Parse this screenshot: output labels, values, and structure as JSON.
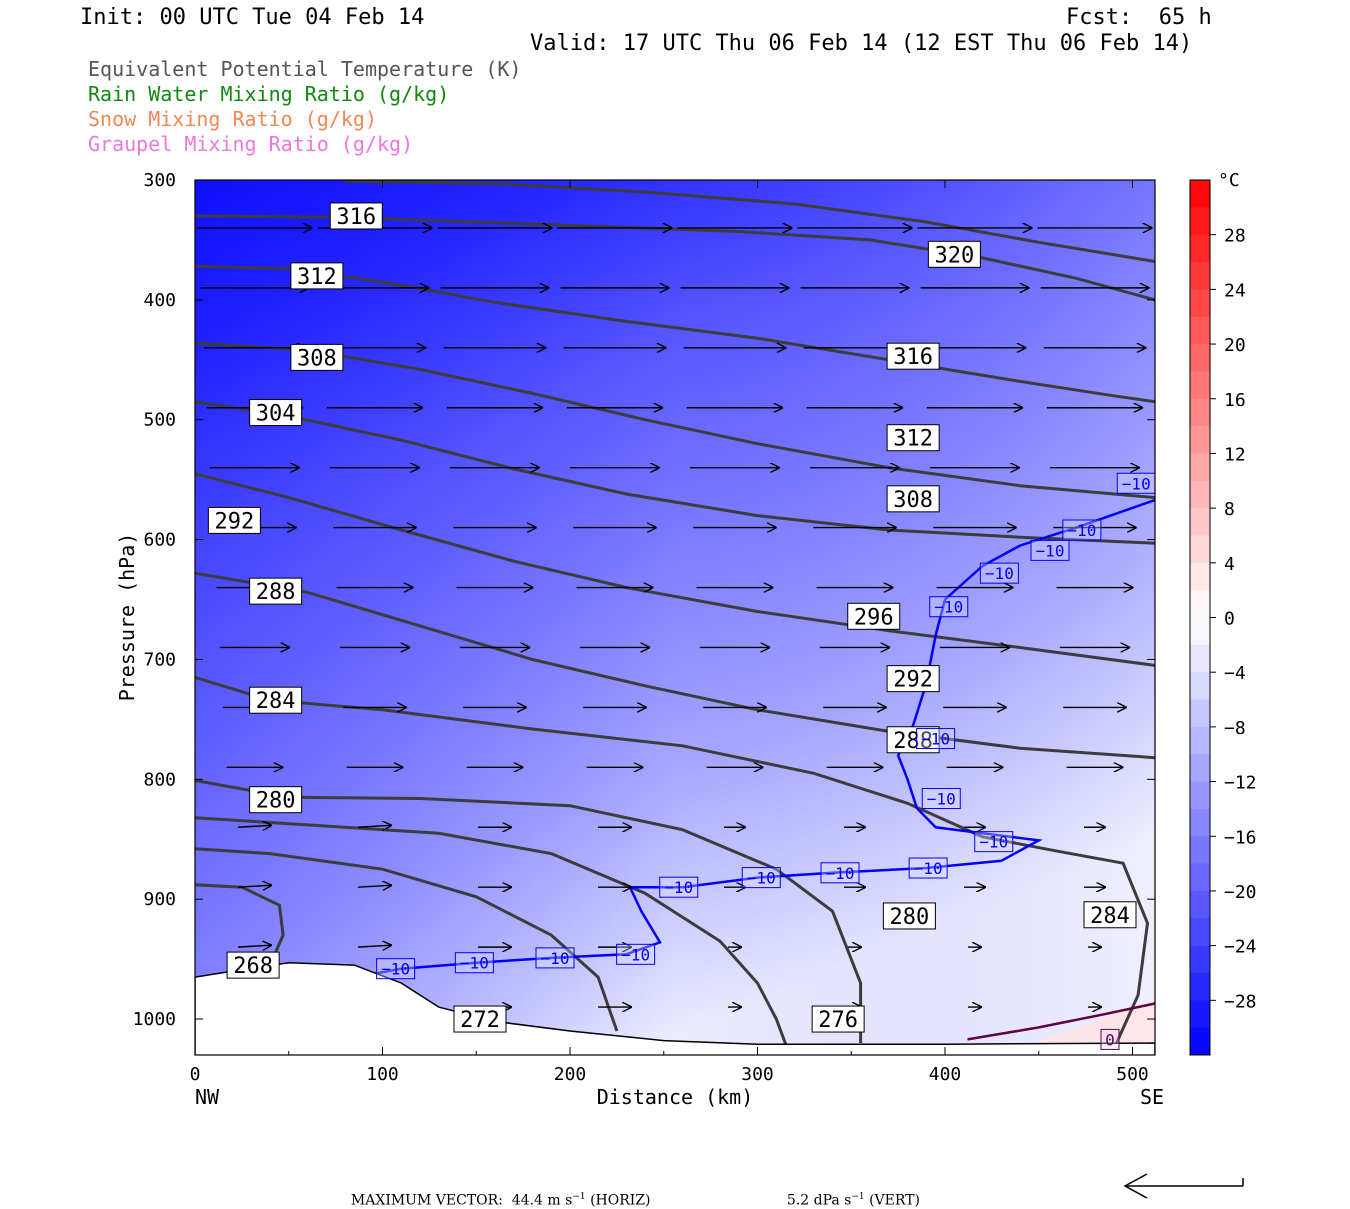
{
  "header": {
    "init": "Init: 00 UTC Tue 04 Feb 14",
    "fcst": "Fcst:  65 h",
    "valid": "Valid: 17 UTC Thu 06 Feb 14 (12 EST Thu 06 Feb 14)"
  },
  "fields": [
    {
      "label": "Equivalent Potential Temperature (K)",
      "color": "#555555"
    },
    {
      "label": "Rain Water Mixing Ratio (g/kg)",
      "color": "#118811"
    },
    {
      "label": "Snow Mixing Ratio (g/kg)",
      "color": "#ee8855"
    },
    {
      "label": "Graupel Mixing Ratio (g/kg)",
      "color": "#ee77dd"
    }
  ],
  "chart_data": {
    "type": "heatmap",
    "xlabel": "Distance (km)",
    "ylabel": "Pressure (hPa)",
    "xlim": [
      0,
      512
    ],
    "ylim": [
      1030,
      300
    ],
    "x_ticks": [
      "0",
      "100",
      "200",
      "300",
      "400",
      "500"
    ],
    "x_tick_values": [
      0,
      100,
      200,
      300,
      400,
      500
    ],
    "y_ticks": [
      "300",
      "400",
      "500",
      "600",
      "700",
      "800",
      "900",
      "1000"
    ],
    "y_tick_values": [
      300,
      400,
      500,
      600,
      700,
      800,
      900,
      1000
    ],
    "left_end_label": "NW",
    "right_end_label": "SE",
    "colorbar": {
      "unit": "°C",
      "labels": [
        "28",
        "24",
        "20",
        "16",
        "12",
        "8",
        "4",
        "0",
        "−4",
        "−8",
        "−12",
        "−16",
        "−20",
        "−24",
        "−28"
      ],
      "label_values": [
        28,
        24,
        20,
        16,
        12,
        8,
        4,
        0,
        -4,
        -8,
        -12,
        -16,
        -20,
        -24,
        -28
      ],
      "min": -32,
      "max": 32,
      "step": 2,
      "cold_color": "#0000ff",
      "neutral_color": "#ffffff",
      "warm_color": "#ff0000"
    },
    "theta_e_contours": [
      {
        "label": "316",
        "label_at": [
          86,
          330
        ],
        "points": [
          [
            0,
            330
          ],
          [
            80,
            331
          ],
          [
            150,
            335
          ],
          [
            220,
            339
          ],
          [
            290,
            343
          ],
          [
            360,
            350
          ],
          [
            420,
            365
          ],
          [
            470,
            382
          ],
          [
            512,
            400
          ]
        ]
      },
      {
        "label": "312",
        "label_at": [
          65,
          380
        ],
        "points": [
          [
            0,
            372
          ],
          [
            50,
            374
          ],
          [
            100,
            385
          ],
          [
            160,
            402
          ],
          [
            230,
            418
          ],
          [
            300,
            432
          ],
          [
            370,
            450
          ],
          [
            440,
            468
          ],
          [
            490,
            480
          ],
          [
            512,
            485
          ]
        ]
      },
      {
        "label": "320",
        "label_at": [
          405,
          362
        ],
        "points": [
          [
            80,
            301
          ],
          [
            160,
            303
          ],
          [
            240,
            310
          ],
          [
            320,
            320
          ],
          [
            390,
            335
          ],
          [
            450,
            352
          ],
          [
            512,
            368
          ]
        ]
      },
      {
        "label": "308",
        "label_at": [
          65,
          448
        ],
        "points": [
          [
            0,
            436
          ],
          [
            60,
            442
          ],
          [
            120,
            458
          ],
          [
            180,
            478
          ],
          [
            240,
            500
          ],
          [
            300,
            520
          ],
          [
            370,
            540
          ],
          [
            440,
            555
          ],
          [
            512,
            565
          ]
        ]
      },
      {
        "label": "316",
        "label_at": [
          383,
          447
        ],
        "points": null
      },
      {
        "label": "304",
        "label_at": [
          43,
          494
        ],
        "points": [
          [
            0,
            485
          ],
          [
            50,
            497
          ],
          [
            110,
            517
          ],
          [
            170,
            541
          ],
          [
            230,
            562
          ],
          [
            300,
            580
          ],
          [
            370,
            592
          ],
          [
            440,
            598
          ],
          [
            512,
            603
          ]
        ]
      },
      {
        "label": "312",
        "label_at": [
          383,
          515
        ],
        "points": null
      },
      {
        "label": "308",
        "label_at": [
          383,
          566
        ],
        "points": null
      },
      {
        "label": "292",
        "label_at": [
          21,
          584
        ],
        "points": [
          [
            0,
            545
          ],
          [
            50,
            565
          ],
          [
            110,
            592
          ],
          [
            170,
            618
          ],
          [
            230,
            640
          ],
          [
            300,
            660
          ],
          [
            370,
            676
          ],
          [
            440,
            690
          ],
          [
            512,
            705
          ]
        ]
      },
      {
        "label": "288",
        "label_at": [
          43,
          643
        ],
        "points": [
          [
            0,
            628
          ],
          [
            60,
            644
          ],
          [
            120,
            672
          ],
          [
            180,
            700
          ],
          [
            240,
            722
          ],
          [
            300,
            742
          ],
          [
            370,
            760
          ],
          [
            440,
            774
          ],
          [
            512,
            782
          ]
        ]
      },
      {
        "label": "296",
        "label_at": [
          362,
          664
        ],
        "points": null
      },
      {
        "label": "292",
        "label_at": [
          383,
          716
        ],
        "points": null
      },
      {
        "label": "284",
        "label_at": [
          43,
          734
        ],
        "points": [
          [
            0,
            715
          ],
          [
            40,
            734
          ],
          [
            100,
            742
          ],
          [
            180,
            758
          ],
          [
            260,
            772
          ],
          [
            330,
            795
          ],
          [
            380,
            820
          ],
          [
            420,
            848
          ],
          [
            460,
            860
          ],
          [
            495,
            870
          ],
          [
            508,
            920
          ],
          [
            503,
            980
          ],
          [
            490,
            1025
          ]
        ]
      },
      {
        "label": "288",
        "label_at": [
          383,
          767
        ],
        "points": null
      },
      {
        "label": "280",
        "label_at": [
          43,
          817
        ],
        "points": [
          [
            0,
            801
          ],
          [
            50,
            815
          ],
          [
            120,
            816
          ],
          [
            200,
            822
          ],
          [
            260,
            842
          ],
          [
            310,
            875
          ],
          [
            340,
            910
          ],
          [
            355,
            970
          ],
          [
            355,
            1020
          ]
        ]
      },
      {
        "label": "284",
        "label_at": [
          488,
          913
        ],
        "points": null
      },
      {
        "label": "280",
        "label_at": [
          381,
          914
        ],
        "points": null
      },
      {
        "label": "276",
        "label_at": [
          343,
          1000
        ],
        "points": [
          [
            0,
            832
          ],
          [
            60,
            838
          ],
          [
            130,
            845
          ],
          [
            190,
            862
          ],
          [
            240,
            895
          ],
          [
            280,
            935
          ],
          [
            300,
            970
          ],
          [
            310,
            1000
          ],
          [
            316,
            1025
          ]
        ]
      },
      {
        "label": "272",
        "label_at": [
          152,
          1000
        ],
        "points": [
          [
            0,
            858
          ],
          [
            40,
            862
          ],
          [
            100,
            875
          ],
          [
            150,
            898
          ],
          [
            190,
            930
          ],
          [
            215,
            965
          ],
          [
            225,
            1010
          ]
        ]
      },
      {
        "label": "268",
        "label_at": [
          31,
          955
        ],
        "points": [
          [
            0,
            888
          ],
          [
            25,
            890
          ],
          [
            45,
            905
          ],
          [
            47,
            930
          ],
          [
            40,
            955
          ]
        ]
      }
    ],
    "temperature_contours": [
      {
        "value": -10,
        "color": "#0000ff",
        "label_positions": [
          [
            107,
            958
          ],
          [
            149,
            953
          ],
          [
            192,
            949
          ],
          [
            235,
            946
          ],
          [
            258,
            890
          ],
          [
            302,
            882
          ],
          [
            344,
            878
          ],
          [
            391,
            874
          ],
          [
            426,
            852
          ],
          [
            398,
            816
          ],
          [
            395,
            766
          ],
          [
            402,
            656
          ],
          [
            429,
            628
          ],
          [
            456,
            609
          ],
          [
            473,
            592
          ],
          [
            502,
            553
          ]
        ],
        "points": [
          [
            86,
            965
          ],
          [
            110,
            958
          ],
          [
            150,
            953
          ],
          [
            190,
            949
          ],
          [
            230,
            946
          ],
          [
            248,
            936
          ],
          [
            238,
            910
          ],
          [
            232,
            890
          ],
          [
            260,
            890
          ],
          [
            300,
            882
          ],
          [
            340,
            878
          ],
          [
            390,
            874
          ],
          [
            430,
            868
          ],
          [
            450,
            851
          ],
          [
            420,
            845
          ],
          [
            395,
            840
          ],
          [
            385,
            824
          ],
          [
            380,
            800
          ],
          [
            375,
            780
          ],
          [
            383,
            755
          ],
          [
            390,
            720
          ],
          [
            395,
            680
          ],
          [
            400,
            650
          ],
          [
            420,
            622
          ],
          [
            440,
            605
          ],
          [
            470,
            590
          ],
          [
            512,
            567
          ]
        ]
      },
      {
        "value": 0,
        "color": "#660044",
        "label_positions": [
          [
            488,
            1017
          ]
        ],
        "points": [
          [
            412,
            1017
          ],
          [
            450,
            1007
          ],
          [
            485,
            996
          ],
          [
            512,
            987
          ]
        ]
      }
    ],
    "wind_vectors_note": "Horizontal/vertical wind vectors in the cross-section plane (shown as arrows).",
    "max_vector": {
      "label": "MAXIMUM VECTOR:",
      "horiz": "44.4 m s",
      "horiz_unit_exp": "−1",
      "horiz_tag": " (HORIZ)",
      "vert": "5.2 dPa s",
      "vert_unit_exp": "−1",
      "vert_tag": " (VERT)"
    }
  }
}
